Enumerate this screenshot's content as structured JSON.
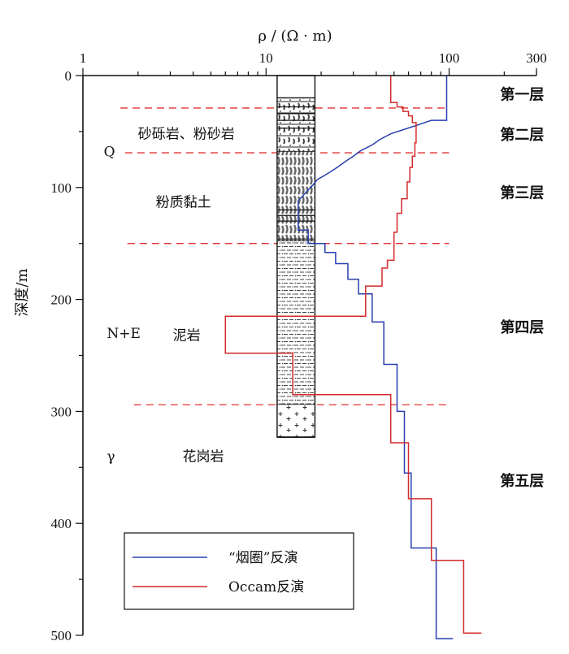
{
  "chart_data": {
    "type": "line",
    "x_axis": {
      "title": "ρ / (Ω · m)",
      "scale": "log",
      "range": [
        1,
        300
      ],
      "position": "top",
      "tick_values": [
        1,
        10,
        100,
        300
      ],
      "tick_labels": [
        "1",
        "10",
        "100",
        "300"
      ]
    },
    "y_axis": {
      "title": "深度/m",
      "range": [
        0,
        500
      ],
      "inverted": true,
      "tick_values": [
        0,
        100,
        200,
        300,
        400,
        500
      ],
      "tick_labels": [
        "0",
        "100",
        "200",
        "300",
        "400",
        "500"
      ]
    },
    "series": [
      {
        "name": "“烟圈”反演",
        "color": "#2a3fb0",
        "points": [
          [
            97,
            0
          ],
          [
            97,
            40
          ],
          [
            80,
            40
          ],
          [
            65,
            45
          ],
          [
            48,
            52
          ],
          [
            42,
            57
          ],
          [
            38,
            62
          ],
          [
            33,
            67
          ],
          [
            30,
            72
          ],
          [
            27,
            77
          ],
          [
            25,
            81
          ],
          [
            23,
            85
          ],
          [
            21,
            89
          ],
          [
            19,
            93
          ],
          [
            18,
            98
          ],
          [
            17,
            102
          ],
          [
            16,
            107
          ],
          [
            15,
            112
          ],
          [
            15,
            138
          ],
          [
            17,
            138
          ],
          [
            17,
            150
          ],
          [
            21,
            150
          ],
          [
            21,
            158
          ],
          [
            24,
            158
          ],
          [
            24,
            168
          ],
          [
            28,
            168
          ],
          [
            28,
            182
          ],
          [
            32,
            182
          ],
          [
            32,
            195
          ],
          [
            38,
            195
          ],
          [
            38,
            220
          ],
          [
            44,
            220
          ],
          [
            44,
            258
          ],
          [
            52,
            258
          ],
          [
            52,
            300
          ],
          [
            57,
            300
          ],
          [
            57,
            355
          ],
          [
            62,
            355
          ],
          [
            62,
            422
          ],
          [
            85,
            422
          ],
          [
            85,
            503
          ],
          [
            105,
            503
          ]
        ]
      },
      {
        "name": "Occam反演",
        "color": "#d42a2a",
        "points": [
          [
            48,
            0
          ],
          [
            48,
            24
          ],
          [
            52,
            24
          ],
          [
            52,
            28
          ],
          [
            56,
            28
          ],
          [
            56,
            32
          ],
          [
            60,
            32
          ],
          [
            60,
            36
          ],
          [
            63,
            36
          ],
          [
            63,
            42
          ],
          [
            66,
            42
          ],
          [
            66,
            60
          ],
          [
            65,
            60
          ],
          [
            65,
            72
          ],
          [
            63,
            72
          ],
          [
            63,
            82
          ],
          [
            61,
            82
          ],
          [
            61,
            95
          ],
          [
            59,
            95
          ],
          [
            59,
            110
          ],
          [
            55,
            110
          ],
          [
            55,
            123
          ],
          [
            52,
            123
          ],
          [
            52,
            140
          ],
          [
            50,
            140
          ],
          [
            50,
            165
          ],
          [
            46,
            165
          ],
          [
            46,
            172
          ],
          [
            43,
            172
          ],
          [
            43,
            188
          ],
          [
            35,
            188
          ],
          [
            35,
            215
          ],
          [
            6,
            215
          ],
          [
            6,
            248
          ],
          [
            14,
            248
          ],
          [
            14,
            285
          ],
          [
            48,
            285
          ],
          [
            48,
            328
          ],
          [
            60,
            328
          ],
          [
            60,
            378
          ],
          [
            80,
            378
          ],
          [
            80,
            433
          ],
          [
            120,
            433
          ],
          [
            120,
            498
          ],
          [
            150,
            498
          ]
        ]
      }
    ],
    "reference_lines": {
      "color": "#e03030",
      "style": "dashed",
      "lines": [
        {
          "y": 29,
          "x_from": 1.6,
          "x_to": 100
        },
        {
          "y": 69,
          "x_from": 1.7,
          "x_to": 100
        },
        {
          "y": 150,
          "x_from": 1.75,
          "x_to": 100
        },
        {
          "y": 294,
          "x_from": 1.9,
          "x_to": 100
        }
      ]
    },
    "layer_labels": [
      {
        "text": "第一层",
        "x": 190,
        "y": 17
      },
      {
        "text": "第二层",
        "x": 190,
        "y": 53
      },
      {
        "text": "第三层",
        "x": 190,
        "y": 105
      },
      {
        "text": "第四层",
        "x": 190,
        "y": 225
      },
      {
        "text": "第五层",
        "x": 190,
        "y": 362
      }
    ],
    "strata_labels": [
      {
        "text": "砂砾岩、粉砂岩",
        "x": 2.0,
        "y": 52
      },
      {
        "text": "Q",
        "x": 1.3,
        "y": 68
      },
      {
        "text": "粉质黏土",
        "x": 2.5,
        "y": 113
      },
      {
        "text": "N+E",
        "x": 1.35,
        "y": 230
      },
      {
        "text": "泥岩",
        "x": 3.1,
        "y": 232
      },
      {
        "text": "γ",
        "x": 1.35,
        "y": 340
      },
      {
        "text": "花岗岩",
        "x": 3.5,
        "y": 340
      }
    ],
    "borehole_column": {
      "x_range": [
        11.5,
        18.5
      ],
      "y_range": [
        0,
        323
      ],
      "segments": [
        {
          "from": 0,
          "to": 20,
          "pattern": "blank"
        },
        {
          "from": 20,
          "to": 68,
          "pattern": "gravel-sandstone"
        },
        {
          "from": 68,
          "to": 148,
          "pattern": "silty-clay"
        },
        {
          "from": 148,
          "to": 294,
          "pattern": "mudstone"
        },
        {
          "from": 294,
          "to": 323,
          "pattern": "granite"
        }
      ]
    },
    "legend": {
      "placement": "bottom-left",
      "entries": [
        {
          "label": "“烟圈”反演",
          "color": "#2a3fb0"
        },
        {
          "label": "Occam反演",
          "color": "#d42a2a"
        }
      ]
    }
  }
}
